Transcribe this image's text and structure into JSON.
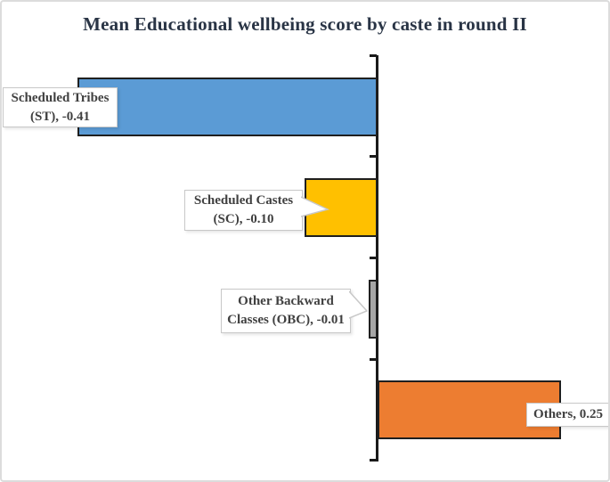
{
  "title": "Mean Educational wellbeing score by caste in round II",
  "chart_data": {
    "type": "bar",
    "orientation": "horizontal",
    "title": "Mean Educational wellbeing score by caste in round II",
    "categories": [
      "Scheduled Tribes (ST)",
      "Scheduled Castes (SC)",
      "Other Backward Classes (OBC)",
      "Others"
    ],
    "values": [
      -0.41,
      -0.1,
      -0.01,
      0.25
    ],
    "value_axis_range": [
      -0.51,
      0.32
    ],
    "grid": false,
    "legend": false,
    "bar_colors": [
      "#5B9BD5",
      "#FFC000",
      "#A6A6A6",
      "#ED7D31"
    ],
    "callouts": [
      {
        "line1": "Scheduled Tribes",
        "line2": "(ST), -0.41"
      },
      {
        "line1": "Scheduled Castes",
        "line2": "(SC), -0.10"
      },
      {
        "line1": "Other Backward",
        "line2": "Classes (OBC), -0.01"
      },
      {
        "line1": "Others, 0.25",
        "line2": ""
      }
    ]
  },
  "colors": {
    "title_text": "#293445",
    "label_text": "#404040",
    "label_border": "#c8c8c8",
    "bar_border": "#1f1f1f",
    "axis": "#1a1a1a",
    "frame_border": "#dcdcdc"
  }
}
